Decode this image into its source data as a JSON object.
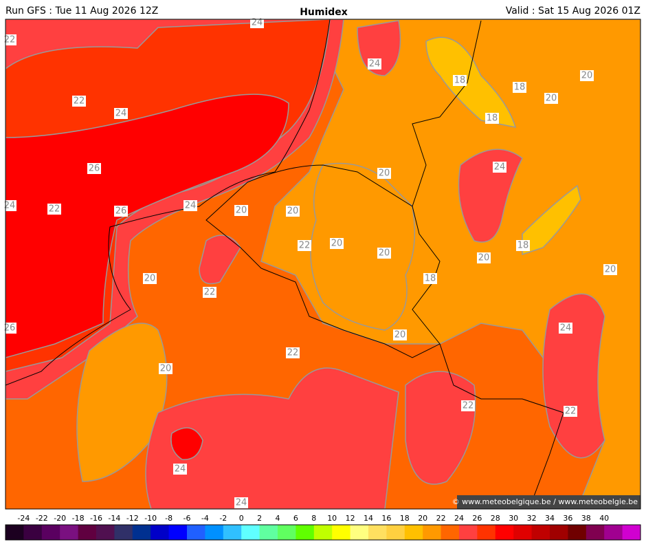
{
  "header": {
    "left": "Run GFS : Tue 11 Aug 2026 12Z",
    "title": "Humidex",
    "right": "Valid : Sat 15 Aug 2026 01Z"
  },
  "credit": "© www.meteobelgique.be / www.meteobelgie.be",
  "contour_labels": [
    "24",
    "22",
    "24",
    "18",
    "18",
    "20",
    "20",
    "22",
    "24",
    "18",
    "26",
    "20",
    "24",
    "24",
    "22",
    "26",
    "24",
    "20",
    "20",
    "22",
    "20",
    "18",
    "20",
    "20",
    "20",
    "20",
    "18",
    "22",
    "26",
    "24",
    "20",
    "22",
    "20",
    "22",
    "22",
    "24",
    "24"
  ],
  "colorbar": {
    "ticks": [
      -24,
      -22,
      -20,
      -18,
      -16,
      -14,
      -12,
      -10,
      -8,
      -6,
      -4,
      -2,
      0,
      2,
      4,
      6,
      8,
      10,
      12,
      14,
      16,
      18,
      20,
      22,
      24,
      26,
      28,
      30,
      32,
      34,
      36,
      38,
      40
    ],
    "colors": [
      "#1c0020",
      "#3a0040",
      "#5a0060",
      "#7a1080",
      "#600040",
      "#501050",
      "#303068",
      "#003090",
      "#0000c8",
      "#0000ff",
      "#2060ff",
      "#0090ff",
      "#30c0ff",
      "#60ffff",
      "#60ffa0",
      "#60ff60",
      "#60ff00",
      "#c0ff00",
      "#ffff00",
      "#ffff80",
      "#ffe060",
      "#ffd040",
      "#ffc000",
      "#ff9900",
      "#ff6600",
      "#ff4040",
      "#ff3300",
      "#ff0000",
      "#e00000",
      "#c00000",
      "#a00000",
      "#700000",
      "#800050",
      "#a00090",
      "#d000d0"
    ]
  }
}
